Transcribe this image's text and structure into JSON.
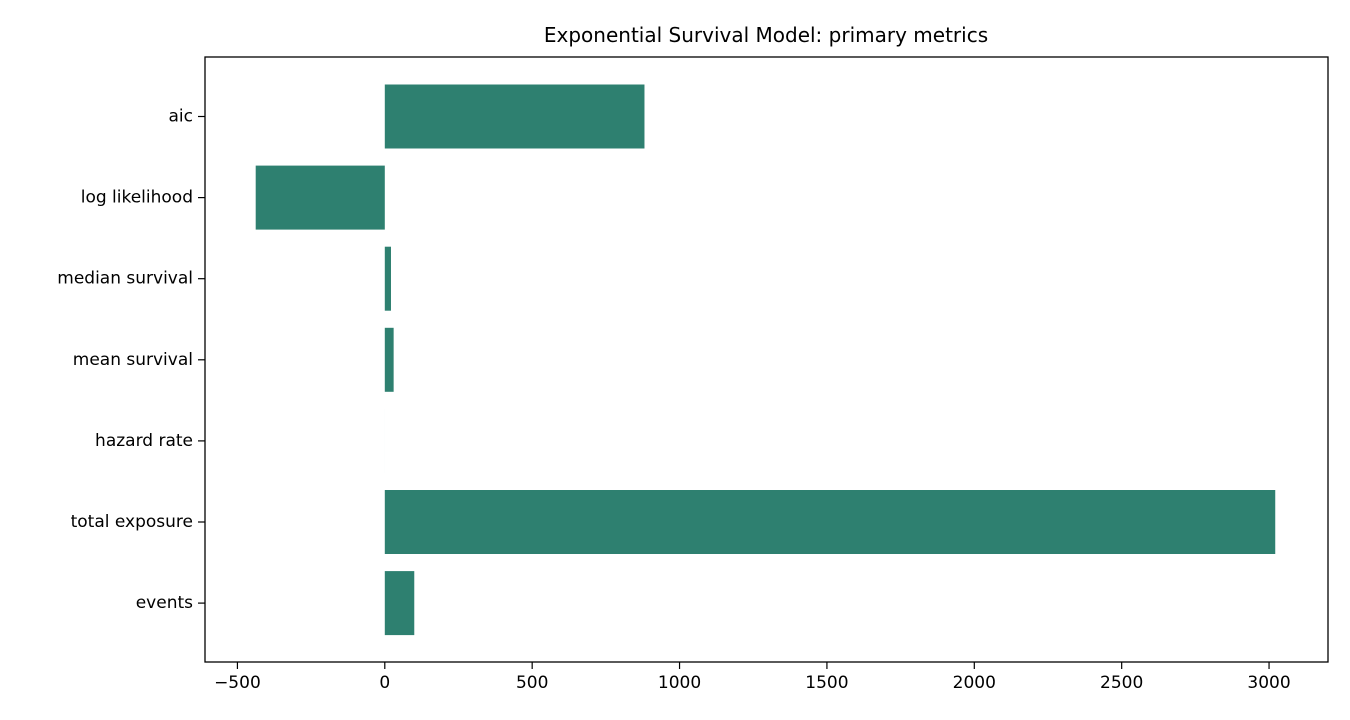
{
  "chart_data": {
    "type": "bar",
    "orientation": "horizontal",
    "title": "Exponential Survival Model: primary metrics",
    "xlabel": "",
    "ylabel": "",
    "categories": [
      "aic",
      "log likelihood",
      "median survival",
      "mean survival",
      "hazard rate",
      "total exposure",
      "events"
    ],
    "values": [
      881,
      -438,
      21,
      30,
      0.033,
      3021,
      100
    ],
    "xlim": [
      -610,
      3200
    ],
    "xticks": [
      -500,
      0,
      500,
      1000,
      1500,
      2000,
      2500,
      3000
    ],
    "xtick_labels": [
      "−500",
      "0",
      "500",
      "1000",
      "1500",
      "2000",
      "2500",
      "3000"
    ],
    "grid": false,
    "legend": "none",
    "bar_color": "#2e8070"
  }
}
